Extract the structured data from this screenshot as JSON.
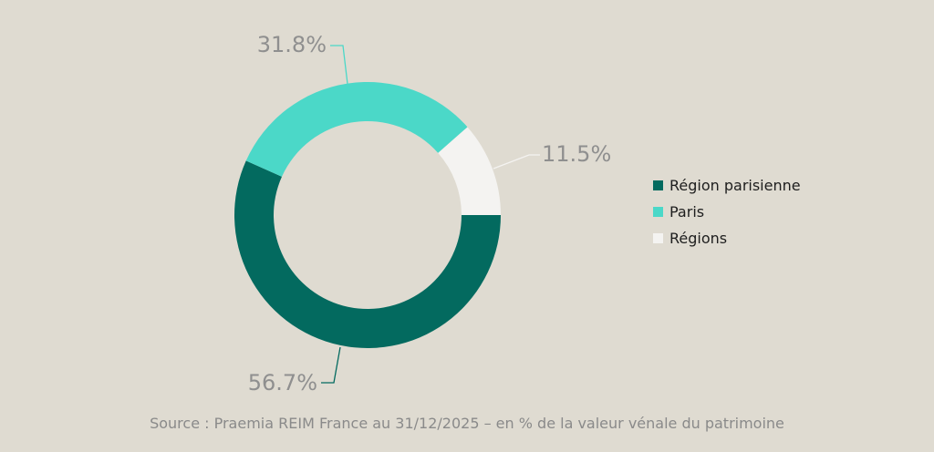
{
  "chart_data": {
    "type": "pie",
    "variant": "donut",
    "categories": [
      "Région parisienne",
      "Paris",
      "Régions"
    ],
    "values": [
      56.7,
      31.8,
      11.5
    ],
    "labels": [
      "56.7%",
      "31.8%",
      "11.5%"
    ],
    "colors": [
      "#036a5f",
      "#4bd8c8",
      "#f4f3f1"
    ],
    "legend_position": "right"
  },
  "legend": {
    "items": [
      {
        "label": "Région parisienne",
        "color": "#036a5f"
      },
      {
        "label": "Paris",
        "color": "#4bd8c8"
      },
      {
        "label": "Régions",
        "color": "#f4f3f1"
      }
    ]
  },
  "source": "Source : Praemia REIM France au 31/12/2025 – en % de la valeur vénale du patrimoine",
  "colors": {
    "background": "#dfdbd1",
    "label_text": "#8f8f8f",
    "leader_line_paris": "#4bd8c8",
    "leader_line_regions": "#f4f3f1",
    "leader_line_region_parisienne": "#036a5f"
  }
}
